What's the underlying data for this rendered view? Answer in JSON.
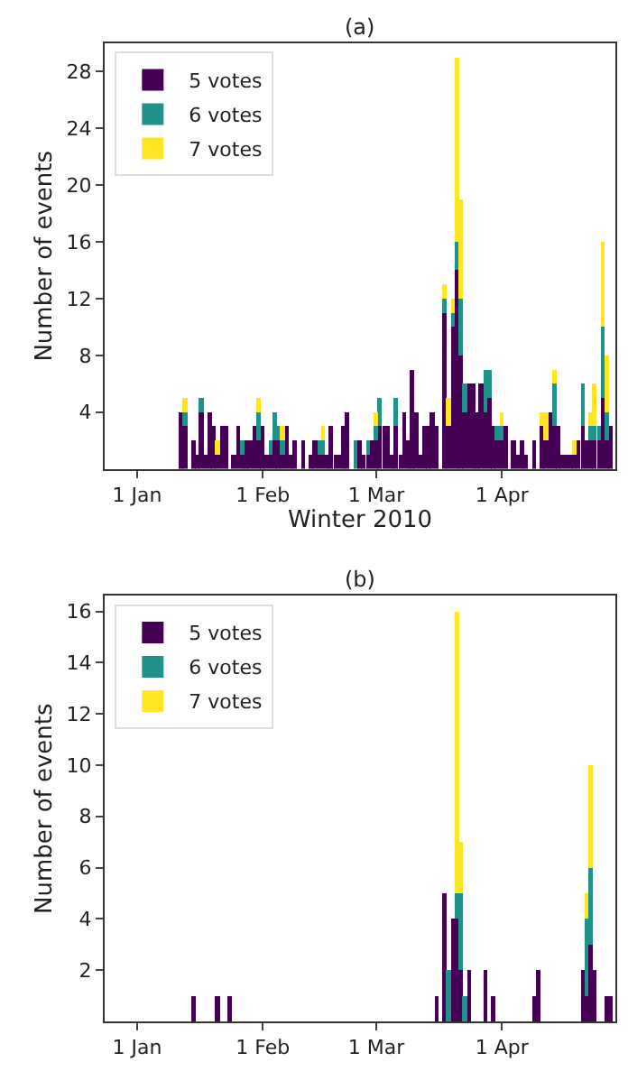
{
  "chart_data": [
    {
      "type": "bar",
      "title": "(a)",
      "xlabel": "Winter 2010",
      "ylabel": "Number of events",
      "stacked": true,
      "legend": "top left",
      "x": [
        "2010-01-12",
        "2010-01-13",
        "2010-01-15",
        "2010-01-16",
        "2010-01-17",
        "2010-01-18",
        "2010-01-19",
        "2010-01-20",
        "2010-01-21",
        "2010-01-22",
        "2010-01-23",
        "2010-01-25",
        "2010-01-26",
        "2010-01-27",
        "2010-01-28",
        "2010-01-29",
        "2010-01-30",
        "2010-01-31",
        "2010-02-01",
        "2010-02-02",
        "2010-02-03",
        "2010-02-04",
        "2010-02-05",
        "2010-02-06",
        "2010-02-07",
        "2010-02-08",
        "2010-02-09",
        "2010-02-11",
        "2010-02-13",
        "2010-02-14",
        "2010-02-15",
        "2010-02-16",
        "2010-02-17",
        "2010-02-18",
        "2010-02-19",
        "2010-02-20",
        "2010-02-21",
        "2010-02-22",
        "2010-02-24",
        "2010-02-25",
        "2010-02-26",
        "2010-02-27",
        "2010-02-28",
        "2010-03-01",
        "2010-03-02",
        "2010-03-03",
        "2010-03-04",
        "2010-03-05",
        "2010-03-06",
        "2010-03-07",
        "2010-03-08",
        "2010-03-09",
        "2010-03-10",
        "2010-03-11",
        "2010-03-12",
        "2010-03-13",
        "2010-03-14",
        "2010-03-15",
        "2010-03-16",
        "2010-03-18",
        "2010-03-19",
        "2010-03-20",
        "2010-03-21",
        "2010-03-22",
        "2010-03-23",
        "2010-03-24",
        "2010-03-25",
        "2010-03-26",
        "2010-03-27",
        "2010-03-28",
        "2010-03-29",
        "2010-03-30",
        "2010-03-31",
        "2010-04-01",
        "2010-04-02",
        "2010-04-04",
        "2010-04-05",
        "2010-04-06",
        "2010-04-07",
        "2010-04-09",
        "2010-04-11",
        "2010-04-12",
        "2010-04-13",
        "2010-04-14",
        "2010-04-15",
        "2010-04-16",
        "2010-04-17",
        "2010-04-18",
        "2010-04-19",
        "2010-04-20",
        "2010-04-21",
        "2010-04-22",
        "2010-04-23",
        "2010-04-24",
        "2010-04-25",
        "2010-04-26",
        "2010-04-27",
        "2010-04-28"
      ],
      "series": [
        {
          "name": "5 votes",
          "color": "#440154",
          "values": [
            4,
            3,
            2,
            1,
            4,
            1,
            4,
            3,
            1,
            3,
            3,
            1,
            3,
            1,
            2,
            2,
            3,
            2,
            3,
            1,
            1,
            2,
            2,
            1,
            3,
            1,
            2,
            2,
            1,
            2,
            1,
            1,
            1,
            3,
            1,
            1,
            3,
            4,
            null,
            2,
            1,
            1,
            2,
            2,
            3,
            3,
            3,
            1,
            3,
            1,
            4,
            2,
            7,
            4,
            1,
            3,
            3,
            4,
            3,
            11,
            3,
            10,
            14,
            8,
            4,
            6,
            6,
            4,
            6,
            4,
            5,
            3,
            2,
            2,
            3,
            2,
            1,
            2,
            1,
            2,
            3,
            2,
            4,
            3,
            3,
            1,
            1,
            1,
            1,
            2,
            3,
            2,
            2,
            2,
            2,
            5,
            2,
            3
          ]
        },
        {
          "name": "6 votes",
          "color": "#21918c",
          "values": [
            null,
            1,
            null,
            null,
            1,
            null,
            null,
            null,
            null,
            null,
            null,
            null,
            null,
            1,
            null,
            null,
            null,
            2,
            null,
            null,
            1,
            2,
            1,
            1,
            null,
            null,
            null,
            null,
            null,
            null,
            1,
            1,
            null,
            null,
            null,
            null,
            null,
            null,
            2,
            null,
            null,
            1,
            null,
            1,
            2,
            null,
            null,
            null,
            2,
            null,
            null,
            null,
            null,
            null,
            null,
            null,
            null,
            null,
            null,
            1,
            null,
            1,
            2,
            4,
            2,
            null,
            null,
            null,
            null,
            3,
            2,
            null,
            1,
            1,
            null,
            null,
            null,
            null,
            null,
            null,
            null,
            null,
            null,
            3,
            null,
            null,
            null,
            null,
            null,
            null,
            3,
            null,
            1,
            1,
            1,
            5,
            2,
            null
          ]
        },
        {
          "name": "7 votes",
          "color": "#fde725",
          "values": [
            null,
            1,
            null,
            null,
            null,
            null,
            null,
            null,
            1,
            null,
            null,
            null,
            null,
            null,
            null,
            null,
            null,
            1,
            null,
            null,
            null,
            null,
            null,
            1,
            null,
            null,
            null,
            null,
            null,
            null,
            null,
            1,
            null,
            null,
            null,
            null,
            null,
            null,
            null,
            null,
            null,
            null,
            null,
            1,
            null,
            null,
            null,
            null,
            null,
            null,
            null,
            null,
            null,
            null,
            null,
            null,
            null,
            null,
            null,
            1,
            2,
            1,
            13,
            7,
            null,
            null,
            null,
            null,
            null,
            null,
            null,
            null,
            null,
            1,
            null,
            null,
            null,
            null,
            null,
            null,
            1,
            2,
            null,
            1,
            null,
            null,
            null,
            null,
            1,
            null,
            null,
            null,
            1,
            3,
            null,
            6,
            4,
            null
          ]
        }
      ],
      "xlim": [
        "2009-12-24",
        "2010-04-29"
      ],
      "xticks": [
        {
          "value": "2010-01-01",
          "label": "1 Jan"
        },
        {
          "value": "2010-02-01",
          "label": "1 Feb"
        },
        {
          "value": "2010-03-01",
          "label": "1 Mar"
        },
        {
          "value": "2010-04-01",
          "label": "1 Apr"
        }
      ],
      "ylim": [
        0,
        30
      ],
      "yticks": [
        4,
        8,
        12,
        16,
        20,
        24,
        28
      ]
    },
    {
      "type": "bar",
      "title": "(b)",
      "ylabel": "Number of events",
      "stacked": true,
      "legend": "top left",
      "x": [
        "2010-01-15",
        "2010-01-21",
        "2010-01-24",
        "2010-03-16",
        "2010-03-18",
        "2010-03-19",
        "2010-03-20",
        "2010-03-21",
        "2010-03-22",
        "2010-03-23",
        "2010-03-24",
        "2010-03-28",
        "2010-03-30",
        "2010-04-09",
        "2010-04-10",
        "2010-04-21",
        "2010-04-22",
        "2010-04-23",
        "2010-04-24",
        "2010-04-27",
        "2010-04-28"
      ],
      "series": [
        {
          "name": "5 votes",
          "color": "#440154",
          "values": [
            1,
            1,
            1,
            1,
            5,
            null,
            4,
            4,
            2,
            null,
            2,
            2,
            1,
            1,
            2,
            2,
            1,
            3,
            2,
            1,
            1
          ]
        },
        {
          "name": "6 votes",
          "color": "#21918c",
          "values": [
            null,
            null,
            null,
            null,
            null,
            2,
            null,
            1,
            3,
            1,
            null,
            null,
            null,
            null,
            null,
            null,
            3,
            3,
            null,
            null,
            null
          ]
        },
        {
          "name": "7 votes",
          "color": "#fde725",
          "values": [
            null,
            null,
            null,
            null,
            null,
            null,
            null,
            11,
            2,
            null,
            null,
            null,
            null,
            null,
            null,
            null,
            1,
            4,
            null,
            null,
            null
          ]
        }
      ],
      "xlim": [
        "2009-12-24",
        "2010-04-29"
      ],
      "xticks": [
        {
          "value": "2010-01-01",
          "label": "1 Jan"
        },
        {
          "value": "2010-02-01",
          "label": "1 Feb"
        },
        {
          "value": "2010-03-01",
          "label": "1 Mar"
        },
        {
          "value": "2010-04-01",
          "label": "1 Apr"
        }
      ],
      "ylim": [
        0,
        16.6
      ],
      "yticks": [
        2,
        4,
        6,
        8,
        10,
        12,
        14,
        16
      ]
    }
  ]
}
